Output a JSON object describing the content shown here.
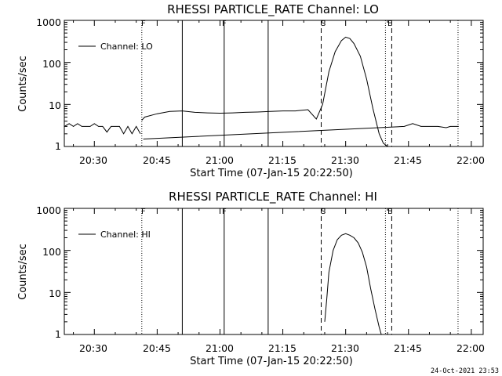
{
  "timestamp": "24-Oct-2021 23:53",
  "chart_data": [
    {
      "type": "line",
      "title": "RHESSI PARTICLE_RATE Channel: LO",
      "xlabel": "Start Time (07-Jan-15 20:22:50)",
      "ylabel": "Counts/sec",
      "x_ticks": [
        "20:30",
        "20:45",
        "21:00",
        "21:15",
        "21:30",
        "21:45",
        "22:00"
      ],
      "y_ticks": [
        "1",
        "10",
        "100",
        "1000"
      ],
      "xlim": [
        "20:22:50",
        "22:02:50"
      ],
      "ylim": [
        1,
        1000
      ],
      "y_scale": "log",
      "legend": "Channel: LO",
      "legend_position": "top-left",
      "markers": [
        {
          "label": "F",
          "time": "20:41:20",
          "style": "dotted"
        },
        {
          "label": "",
          "time": "20:51:00",
          "style": "solid"
        },
        {
          "label": "F",
          "time": "21:01:00",
          "style": "solid"
        },
        {
          "label": "",
          "time": "21:11:30",
          "style": "solid"
        },
        {
          "label": "S",
          "time": "21:24:10",
          "style": "dashed"
        },
        {
          "label": "E",
          "time": "21:39:30",
          "style": "dotted"
        },
        {
          "label": "",
          "time": "21:41:00",
          "style": "dashed"
        },
        {
          "label": "",
          "time": "21:56:50",
          "style": "dotted"
        }
      ],
      "series": [
        {
          "name": "Channel: LO",
          "segments": [
            {
              "x": [
                "20:22:50",
                "20:24:00",
                "20:25:00",
                "20:26:00",
                "20:27:00",
                "20:28:00",
                "20:29:00",
                "20:30:00",
                "20:31:00",
                "20:32:00",
                "20:33:00",
                "20:34:00",
                "20:35:00",
                "20:36:00",
                "20:37:00",
                "20:38:00",
                "20:39:00",
                "20:40:00",
                "20:41:00"
              ],
              "y": [
                3,
                3.5,
                3,
                3.5,
                3,
                3,
                3,
                3.5,
                3,
                3,
                2.2,
                3,
                3,
                3,
                2,
                3,
                2,
                3,
                2
              ]
            },
            {
              "x": [
                "20:41:20",
                "20:42:00",
                "20:45:00",
                "20:48:00",
                "20:51:00",
                "20:54:00",
                "20:57:00",
                "21:00:00",
                "21:03:00",
                "21:06:00",
                "21:09:00",
                "21:12:00",
                "21:15:00",
                "21:18:00",
                "21:21:00",
                "21:23:00",
                "21:24:30",
                "21:26:00",
                "21:27:30",
                "21:29:00",
                "21:30:00",
                "21:31:00",
                "21:32:00",
                "21:33:30",
                "21:35:00",
                "21:36:30",
                "21:38:00",
                "21:39:00",
                "21:40:00",
                "21:41:00"
              ],
              "y": [
                4.2,
                5,
                6,
                6.8,
                7,
                6.5,
                6.3,
                6.2,
                6.3,
                6.5,
                6.6,
                6.8,
                7,
                7,
                7.5,
                4.5,
                10,
                60,
                180,
                330,
                400,
                370,
                280,
                140,
                40,
                8,
                2,
                1.2,
                1,
                1
              ]
            },
            {
              "x": [
                "20:41:40",
                "21:44:00",
                "21:46:00",
                "21:48:00",
                "21:50:00",
                "21:52:00",
                "21:54:00",
                "21:55:00",
                "21:57:00"
              ],
              "y": [
                1.5,
                3,
                3.5,
                3,
                3,
                3,
                2.8,
                3,
                3
              ]
            }
          ]
        }
      ]
    },
    {
      "type": "line",
      "title": "RHESSI PARTICLE_RATE Channel: HI",
      "xlabel": "Start Time (07-Jan-15 20:22:50)",
      "ylabel": "Counts/sec",
      "x_ticks": [
        "20:30",
        "20:45",
        "21:00",
        "21:15",
        "21:30",
        "21:45",
        "22:00"
      ],
      "y_ticks": [
        "1",
        "10",
        "100",
        "1000"
      ],
      "xlim": [
        "20:22:50",
        "22:02:50"
      ],
      "ylim": [
        1,
        1000
      ],
      "y_scale": "log",
      "legend": "Channel: HI",
      "legend_position": "top-left",
      "markers": [
        {
          "label": "F",
          "time": "20:41:20",
          "style": "dotted"
        },
        {
          "label": "",
          "time": "20:51:00",
          "style": "solid"
        },
        {
          "label": "F",
          "time": "21:01:00",
          "style": "solid"
        },
        {
          "label": "",
          "time": "21:11:30",
          "style": "solid"
        },
        {
          "label": "S",
          "time": "21:24:10",
          "style": "dashed"
        },
        {
          "label": "E",
          "time": "21:39:30",
          "style": "dotted"
        },
        {
          "label": "",
          "time": "21:41:00",
          "style": "dashed"
        },
        {
          "label": "",
          "time": "21:56:50",
          "style": "dotted"
        }
      ],
      "series": [
        {
          "name": "Channel: HI",
          "segments": [
            {
              "x": [
                "21:25:00",
                "21:25:30",
                "21:26:00",
                "21:27:00",
                "21:28:00",
                "21:29:00",
                "21:30:00",
                "21:31:00",
                "21:32:00",
                "21:33:00",
                "21:34:00",
                "21:35:00",
                "21:36:00",
                "21:37:00",
                "21:38:00",
                "21:38:30"
              ],
              "y": [
                2,
                7,
                30,
                100,
                180,
                230,
                250,
                230,
                200,
                150,
                90,
                40,
                12,
                4,
                1.5,
                1
              ]
            }
          ]
        }
      ]
    }
  ]
}
